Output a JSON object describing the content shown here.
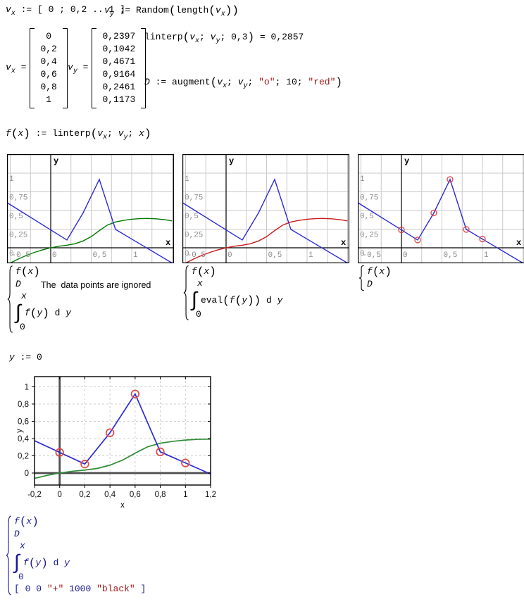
{
  "worksheet": {
    "note_ignored": "The  data points are ignored",
    "formulas": {
      "vx_def": [
        {
          "c": "var",
          "v": "v"
        },
        {
          "c": "sub",
          "v": "x"
        },
        {
          "c": "op",
          "v": " := "
        },
        {
          "c": "op",
          "v": "[ "
        },
        {
          "c": "num",
          "v": "0"
        },
        {
          "c": "op",
          "v": " ; "
        },
        {
          "c": "num",
          "v": "0,2"
        },
        {
          "c": "op",
          "v": " .. "
        },
        {
          "c": "num",
          "v": "1"
        },
        {
          "c": "op",
          "v": " ]"
        }
      ],
      "vy_def": [
        {
          "c": "var",
          "v": "v"
        },
        {
          "c": "sub",
          "v": "y"
        },
        {
          "c": "op",
          "v": " := "
        },
        {
          "c": "fn",
          "v": "Random"
        },
        {
          "c": "paren",
          "v": "("
        },
        {
          "c": "fn",
          "v": "length"
        },
        {
          "c": "paren",
          "v": "("
        },
        {
          "c": "var",
          "v": "v"
        },
        {
          "c": "sub",
          "v": "x"
        },
        {
          "c": "paren",
          "v": ")"
        },
        {
          "c": "paren",
          "v": ")"
        }
      ],
      "linterp_eval": [
        {
          "c": "fn",
          "v": "linterp"
        },
        {
          "c": "paren",
          "v": "("
        },
        {
          "c": "var",
          "v": "v"
        },
        {
          "c": "sub",
          "v": "x"
        },
        {
          "c": "op",
          "v": "; "
        },
        {
          "c": "var",
          "v": "v"
        },
        {
          "c": "sub",
          "v": "y"
        },
        {
          "c": "op",
          "v": "; "
        },
        {
          "c": "num",
          "v": "0,3"
        },
        {
          "c": "paren",
          "v": ")"
        },
        {
          "c": "op",
          "v": " = "
        },
        {
          "c": "num",
          "v": "0,2857"
        }
      ],
      "augment_def": [
        {
          "c": "var",
          "v": "D"
        },
        {
          "c": "op",
          "v": " := "
        },
        {
          "c": "fn",
          "v": "augment"
        },
        {
          "c": "paren",
          "v": "("
        },
        {
          "c": "var",
          "v": "v"
        },
        {
          "c": "sub",
          "v": "x"
        },
        {
          "c": "op",
          "v": "; "
        },
        {
          "c": "var",
          "v": "v"
        },
        {
          "c": "sub",
          "v": "y"
        },
        {
          "c": "op",
          "v": "; "
        },
        {
          "c": "str",
          "v": "\"o\""
        },
        {
          "c": "op",
          "v": "; "
        },
        {
          "c": "num",
          "v": "10"
        },
        {
          "c": "op",
          "v": "; "
        },
        {
          "c": "str",
          "v": "\"red\""
        },
        {
          "c": "paren",
          "v": ")"
        }
      ],
      "f_def": [
        {
          "c": "var",
          "v": "f"
        },
        {
          "c": "paren",
          "v": "("
        },
        {
          "c": "var",
          "v": "x"
        },
        {
          "c": "paren",
          "v": ")"
        },
        {
          "c": "op",
          "v": " := "
        },
        {
          "c": "fn",
          "v": "linterp"
        },
        {
          "c": "paren",
          "v": "("
        },
        {
          "c": "var",
          "v": "v"
        },
        {
          "c": "sub",
          "v": "x"
        },
        {
          "c": "op",
          "v": "; "
        },
        {
          "c": "var",
          "v": "v"
        },
        {
          "c": "sub",
          "v": "y"
        },
        {
          "c": "op",
          "v": "; "
        },
        {
          "c": "var",
          "v": "x"
        },
        {
          "c": "paren",
          "v": ")"
        }
      ],
      "y_def": [
        {
          "c": "var",
          "v": "y"
        },
        {
          "c": "op",
          "v": " := "
        },
        {
          "c": "num",
          "v": "0"
        }
      ]
    },
    "matrices": {
      "vx": {
        "label": [
          {
            "c": "var",
            "v": "v"
          },
          {
            "c": "sub",
            "v": "x"
          },
          {
            "c": "op",
            "v": " = "
          }
        ],
        "rows": [
          "0",
          "0,2",
          "0,4",
          "0,6",
          "0,8",
          "1"
        ]
      },
      "vy": {
        "label": [
          {
            "c": "var",
            "v": "v"
          },
          {
            "c": "sub",
            "v": "y"
          },
          {
            "c": "op",
            "v": " = "
          }
        ],
        "rows": [
          "0,2397",
          "0,1042",
          "0,4671",
          "0,9164",
          "0,2461",
          "0,1173"
        ]
      }
    },
    "braces": {
      "plot1": [
        [
          {
            "c": "var",
            "v": "f"
          },
          {
            "c": "paren",
            "v": "("
          },
          {
            "c": "var",
            "v": "x"
          },
          {
            "c": "paren",
            "v": ")"
          }
        ],
        [
          {
            "c": "var",
            "v": "D"
          }
        ],
        {
          "int": {
            "upper": [
              {
                "c": "var",
                "v": "x"
              }
            ],
            "lower": [
              {
                "c": "num",
                "v": "0"
              }
            ],
            "body": [
              {
                "c": "var",
                "v": "f"
              },
              {
                "c": "paren",
                "v": "("
              },
              {
                "c": "var",
                "v": "y"
              },
              {
                "c": "paren",
                "v": ")"
              },
              {
                "c": "op",
                "v": " "
              },
              {
                "c": "fn",
                "v": "d "
              },
              {
                "c": "var",
                "v": "y"
              }
            ]
          }
        }
      ],
      "plot2": [
        [
          {
            "c": "var",
            "v": "f"
          },
          {
            "c": "paren",
            "v": "("
          },
          {
            "c": "var",
            "v": "x"
          },
          {
            "c": "paren",
            "v": ")"
          }
        ],
        {
          "int": {
            "upper": [
              {
                "c": "var",
                "v": "x"
              }
            ],
            "lower": [
              {
                "c": "num",
                "v": "0"
              }
            ],
            "body": [
              {
                "c": "fn",
                "v": "eval"
              },
              {
                "c": "paren",
                "v": "("
              },
              {
                "c": "var",
                "v": "f"
              },
              {
                "c": "paren",
                "v": "("
              },
              {
                "c": "var",
                "v": "y"
              },
              {
                "c": "paren",
                "v": ")"
              },
              {
                "c": "paren",
                "v": ")"
              },
              {
                "c": "op",
                "v": " "
              },
              {
                "c": "fn",
                "v": "d "
              },
              {
                "c": "var",
                "v": "y"
              }
            ]
          }
        }
      ],
      "plot3": [
        [
          {
            "c": "var",
            "v": "f"
          },
          {
            "c": "paren",
            "v": "("
          },
          {
            "c": "var",
            "v": "x"
          },
          {
            "c": "paren",
            "v": ")"
          }
        ],
        [
          {
            "c": "var",
            "v": "D"
          }
        ]
      ],
      "big": [
        [
          {
            "c": "var",
            "v": "f"
          },
          {
            "c": "paren",
            "v": "("
          },
          {
            "c": "var",
            "v": "x"
          },
          {
            "c": "paren",
            "v": ")"
          }
        ],
        [
          {
            "c": "var",
            "v": "D"
          }
        ],
        {
          "int": {
            "upper": [
              {
                "c": "var",
                "v": "x"
              }
            ],
            "lower": [
              {
                "c": "num",
                "v": "0"
              }
            ],
            "body": [
              {
                "c": "var",
                "v": "f"
              },
              {
                "c": "paren",
                "v": "("
              },
              {
                "c": "var",
                "v": "y"
              },
              {
                "c": "paren",
                "v": ")"
              },
              {
                "c": "op",
                "v": " "
              },
              {
                "c": "fn",
                "v": "d "
              },
              {
                "c": "var",
                "v": "y"
              }
            ]
          }
        },
        [
          {
            "c": "op",
            "v": "[ "
          },
          {
            "c": "num",
            "v": "0"
          },
          {
            "c": "op",
            "v": " "
          },
          {
            "c": "num",
            "v": "0"
          },
          {
            "c": "op",
            "v": " "
          },
          {
            "c": "str",
            "v": "\"+\""
          },
          {
            "c": "op",
            "v": " "
          },
          {
            "c": "num",
            "v": "1000"
          },
          {
            "c": "op",
            "v": " "
          },
          {
            "c": "str",
            "v": "\"black\""
          },
          {
            "c": "op",
            "v": " ]"
          }
        ]
      ]
    }
  },
  "chart_data": {
    "type": "line",
    "data_points": {
      "x": [
        0,
        0.2,
        0.4,
        0.6,
        0.8,
        1
      ],
      "y": [
        0.2397,
        0.1042,
        0.4671,
        0.9164,
        0.2461,
        0.1173
      ]
    },
    "f_line_extended": [
      [
        -0.6,
        0.6462
      ],
      [
        0,
        0.2397
      ],
      [
        0.2,
        0.1042
      ],
      [
        0.4,
        0.4671
      ],
      [
        0.6,
        0.9164
      ],
      [
        0.8,
        0.2461
      ],
      [
        1,
        0.1173
      ],
      [
        1.6,
        -0.2691
      ]
    ],
    "integral_samples": [
      [
        -0.5,
        -0.2045
      ],
      [
        -0.4,
        -0.1501
      ],
      [
        -0.3,
        -0.1024
      ],
      [
        -0.2,
        -0.0615
      ],
      [
        -0.1,
        -0.0274
      ],
      [
        0,
        0
      ],
      [
        0.1,
        0.0206
      ],
      [
        0.2,
        0.0344
      ],
      [
        0.3,
        0.0539
      ],
      [
        0.4,
        0.0915
      ],
      [
        0.5,
        0.1495
      ],
      [
        0.6,
        0.2299
      ],
      [
        0.7,
        0.3048
      ],
      [
        0.8,
        0.3462
      ],
      [
        0.9,
        0.3676
      ],
      [
        1,
        0.3825
      ],
      [
        1.1,
        0.391
      ],
      [
        1.2,
        0.3931
      ],
      [
        1.3,
        0.3888
      ],
      [
        1.4,
        0.378
      ],
      [
        1.5,
        0.3607
      ]
    ],
    "small_plots": [
      {
        "name": "f-and-integral-green",
        "show_integral": true,
        "integral_color": "#007a00",
        "show_markers": false
      },
      {
        "name": "f-and-integral-red",
        "show_integral": true,
        "integral_color": "#cc1a1a",
        "show_markers": false
      },
      {
        "name": "f-and-data-points",
        "show_integral": false,
        "integral_color": "",
        "show_markers": true
      }
    ],
    "small_axes": {
      "xlabel": "x",
      "ylabel": "y",
      "xlim": [
        -0.5,
        1.52
      ],
      "ylim": [
        -0.21,
        1.26
      ],
      "x_ticks": [
        {
          "v": -0.5,
          "label": "-0,5"
        },
        {
          "v": 0,
          "label": "0"
        },
        {
          "v": 0.5,
          "label": "0,5"
        },
        {
          "v": 1,
          "label": "1"
        }
      ],
      "y_ticks": [
        {
          "v": 0,
          "label": "0"
        },
        {
          "v": 0.25,
          "label": "0,25"
        },
        {
          "v": 0.5,
          "label": "0,5"
        },
        {
          "v": 0.75,
          "label": "0,75"
        },
        {
          "v": 1,
          "label": "1"
        }
      ]
    },
    "big_plot": {
      "xlabel": "x",
      "ylabel": "y",
      "xlim": [
        -0.2,
        1.2
      ],
      "ylim": [
        -0.139,
        1.118
      ],
      "x_ticks": [
        {
          "v": -0.2,
          "label": "-0,2"
        },
        {
          "v": 0,
          "label": "0"
        },
        {
          "v": 0.2,
          "label": "0,2"
        },
        {
          "v": 0.4,
          "label": "0,4"
        },
        {
          "v": 0.6,
          "label": "0,6"
        },
        {
          "v": 0.8,
          "label": "0,8"
        },
        {
          "v": 1,
          "label": "1"
        },
        {
          "v": 1.2,
          "label": "1,2"
        }
      ],
      "y_ticks": [
        {
          "v": 0,
          "label": "0"
        },
        {
          "v": 0.2,
          "label": "0,2"
        },
        {
          "v": 0.4,
          "label": "0,4"
        },
        {
          "v": 0.6,
          "label": "0,6"
        },
        {
          "v": 0.8,
          "label": "0,8"
        },
        {
          "v": 1,
          "label": "1"
        }
      ],
      "cross_marker_at": [
        0,
        0
      ]
    },
    "colors": {
      "blue_line": "#2b2bd6",
      "green_curve": "#007a00",
      "red_curve": "#cc1a1a",
      "big_green": "#2e8b35",
      "marker_stroke": "#e14747",
      "grid_small": "#c9c9c9",
      "grid_big": "#cdcdcd",
      "cross_gray": "#4e4e4e",
      "tick_gray": "#8a8a8a",
      "axis_black": "#000000"
    }
  }
}
